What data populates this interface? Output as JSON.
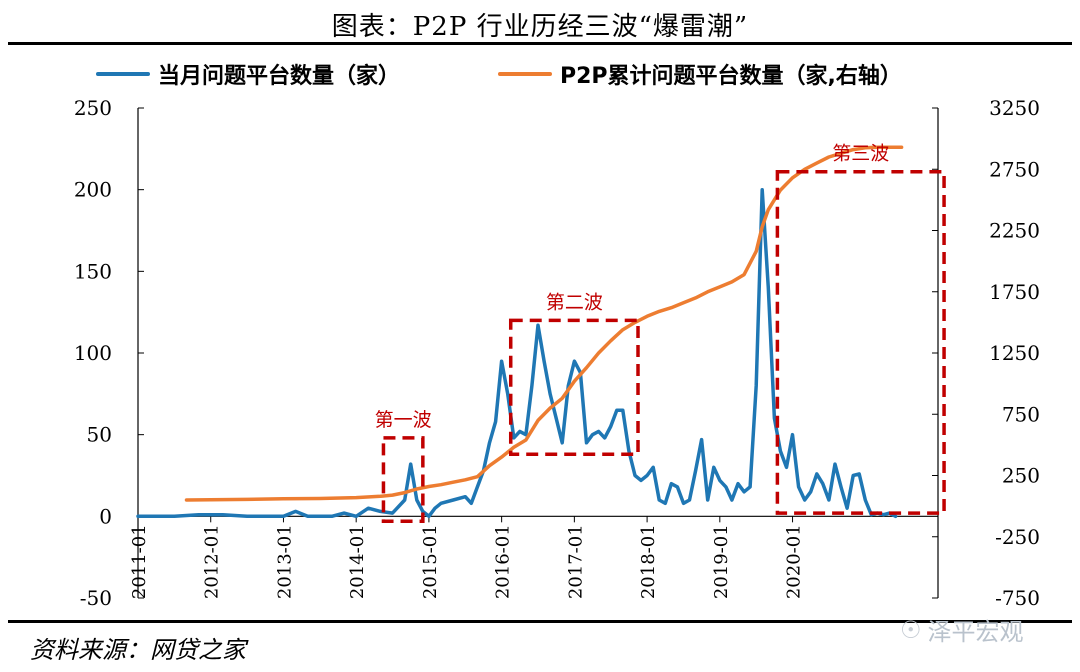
{
  "title": "图表：P2P 行业历经三波“爆雷潮”",
  "source": "资料来源：网贷之家",
  "watermark": "泽平宏观",
  "colors": {
    "monthly": "#1f77b4",
    "cumulative": "#ed7d31",
    "box": "#c00000",
    "axis": "#000000"
  },
  "chart_data": {
    "type": "line",
    "title": "图表：P2P 行业历经三波“爆雷潮”",
    "x_ticks": [
      "2011-01",
      "2012-01",
      "2013-01",
      "2014-01",
      "2015-01",
      "2016-01",
      "2017-01",
      "2018-01",
      "2019-01",
      "2020-01"
    ],
    "y_left": {
      "ticks": [
        "250",
        "200",
        "150",
        "100",
        "50",
        "0",
        "-50"
      ],
      "lim": [
        -50,
        250
      ]
    },
    "y_right": {
      "ticks": [
        "3250",
        "2750",
        "2250",
        "1750",
        "1250",
        "750",
        "250",
        "-250",
        "-750"
      ],
      "lim": [
        -750,
        3250
      ]
    },
    "legend_position": "top",
    "series": [
      {
        "name": "当月问题平台数量（家）",
        "axis": "left",
        "points": [
          [
            0,
            0
          ],
          [
            6,
            0
          ],
          [
            10,
            1
          ],
          [
            12,
            1
          ],
          [
            14,
            1
          ],
          [
            18,
            0
          ],
          [
            24,
            0
          ],
          [
            26,
            3
          ],
          [
            28,
            0
          ],
          [
            32,
            0
          ],
          [
            34,
            2
          ],
          [
            36,
            0
          ],
          [
            38,
            5
          ],
          [
            40,
            3
          ],
          [
            42,
            2
          ],
          [
            44,
            10
          ],
          [
            45,
            32
          ],
          [
            46,
            10
          ],
          [
            47,
            3
          ],
          [
            48,
            0
          ],
          [
            49,
            5
          ],
          [
            50,
            8
          ],
          [
            52,
            10
          ],
          [
            54,
            12
          ],
          [
            55,
            8
          ],
          [
            56,
            18
          ],
          [
            57,
            28
          ],
          [
            58,
            45
          ],
          [
            59,
            58
          ],
          [
            60,
            95
          ],
          [
            61,
            75
          ],
          [
            62,
            48
          ],
          [
            63,
            52
          ],
          [
            64,
            50
          ],
          [
            65,
            80
          ],
          [
            66,
            117
          ],
          [
            67,
            95
          ],
          [
            68,
            75
          ],
          [
            69,
            60
          ],
          [
            70,
            45
          ],
          [
            71,
            80
          ],
          [
            72,
            95
          ],
          [
            73,
            88
          ],
          [
            74,
            45
          ],
          [
            75,
            50
          ],
          [
            76,
            52
          ],
          [
            77,
            48
          ],
          [
            78,
            55
          ],
          [
            79,
            65
          ],
          [
            80,
            65
          ],
          [
            81,
            40
          ],
          [
            82,
            25
          ],
          [
            83,
            22
          ],
          [
            84,
            25
          ],
          [
            85,
            30
          ],
          [
            86,
            10
          ],
          [
            87,
            8
          ],
          [
            88,
            20
          ],
          [
            89,
            18
          ],
          [
            90,
            8
          ],
          [
            91,
            10
          ],
          [
            92,
            28
          ],
          [
            93,
            47
          ],
          [
            94,
            10
          ],
          [
            95,
            30
          ],
          [
            96,
            22
          ],
          [
            97,
            18
          ],
          [
            98,
            10
          ],
          [
            99,
            20
          ],
          [
            100,
            15
          ],
          [
            101,
            18
          ],
          [
            102,
            80
          ],
          [
            103,
            200
          ],
          [
            104,
            140
          ],
          [
            105,
            60
          ],
          [
            106,
            40
          ],
          [
            107,
            30
          ],
          [
            108,
            50
          ],
          [
            109,
            18
          ],
          [
            110,
            10
          ],
          [
            111,
            15
          ],
          [
            112,
            26
          ],
          [
            113,
            20
          ],
          [
            114,
            10
          ],
          [
            115,
            32
          ],
          [
            116,
            18
          ],
          [
            117,
            5
          ],
          [
            118,
            25
          ],
          [
            119,
            26
          ],
          [
            120,
            10
          ],
          [
            121,
            1
          ],
          [
            122,
            2
          ],
          [
            123,
            1
          ],
          [
            124,
            2
          ],
          [
            125,
            0
          ]
        ]
      },
      {
        "name": "P2P累计问题平台数量（家,右轴）",
        "axis": "right",
        "points": [
          [
            8,
            50
          ],
          [
            12,
            52
          ],
          [
            18,
            55
          ],
          [
            24,
            60
          ],
          [
            30,
            62
          ],
          [
            36,
            70
          ],
          [
            40,
            80
          ],
          [
            42,
            90
          ],
          [
            44,
            110
          ],
          [
            46,
            140
          ],
          [
            48,
            160
          ],
          [
            50,
            175
          ],
          [
            52,
            195
          ],
          [
            54,
            215
          ],
          [
            56,
            240
          ],
          [
            58,
            330
          ],
          [
            60,
            400
          ],
          [
            62,
            480
          ],
          [
            64,
            540
          ],
          [
            66,
            700
          ],
          [
            68,
            800
          ],
          [
            70,
            880
          ],
          [
            72,
            1020
          ],
          [
            74,
            1130
          ],
          [
            76,
            1250
          ],
          [
            78,
            1350
          ],
          [
            80,
            1440
          ],
          [
            82,
            1500
          ],
          [
            84,
            1550
          ],
          [
            86,
            1590
          ],
          [
            88,
            1620
          ],
          [
            90,
            1660
          ],
          [
            92,
            1700
          ],
          [
            94,
            1750
          ],
          [
            96,
            1790
          ],
          [
            98,
            1830
          ],
          [
            100,
            1890
          ],
          [
            102,
            2080
          ],
          [
            103,
            2280
          ],
          [
            104,
            2420
          ],
          [
            106,
            2580
          ],
          [
            108,
            2680
          ],
          [
            110,
            2750
          ],
          [
            112,
            2800
          ],
          [
            114,
            2850
          ],
          [
            116,
            2880
          ],
          [
            118,
            2910
          ],
          [
            120,
            2925
          ],
          [
            122,
            2930
          ],
          [
            124,
            2930
          ],
          [
            126,
            2930
          ]
        ]
      }
    ],
    "annotations": [
      {
        "label": "第一波",
        "x": [
          40.5,
          47
        ],
        "y": [
          -3,
          48
        ]
      },
      {
        "label": "第二波",
        "x": [
          61.5,
          82.5
        ],
        "y": [
          38,
          120
        ]
      },
      {
        "label": "第三波",
        "x": [
          105.5,
          133
        ],
        "y": [
          2,
          211
        ]
      }
    ]
  }
}
